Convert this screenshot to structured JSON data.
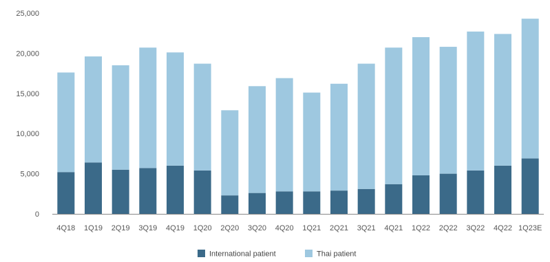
{
  "colors": {
    "international": "#3b6a89",
    "thai": "#9ec8e0",
    "axis": "#888888"
  },
  "chart_data": {
    "type": "bar",
    "stacked": true,
    "title": "",
    "xlabel": "",
    "ylabel": "",
    "ylim": [
      0,
      25000
    ],
    "yticks": [
      0,
      5000,
      10000,
      15000,
      20000,
      25000
    ],
    "ytick_labels": [
      "0",
      "5,000",
      "10,000",
      "15,000",
      "20,000",
      "25,000"
    ],
    "grid": false,
    "legend_position": "bottom-center",
    "categories": [
      "4Q18",
      "1Q19",
      "2Q19",
      "3Q19",
      "4Q19",
      "1Q20",
      "2Q20",
      "3Q20",
      "4Q20",
      "1Q21",
      "2Q21",
      "3Q21",
      "4Q21",
      "1Q22",
      "2Q22",
      "3Q22",
      "4Q22",
      "1Q23E"
    ],
    "series": [
      {
        "name": "International patient",
        "color": "#3b6a89",
        "values": [
          5200,
          6400,
          5500,
          5700,
          6000,
          5400,
          2300,
          2600,
          2800,
          2800,
          2900,
          3100,
          3700,
          4800,
          5000,
          5400,
          6000,
          6900
        ]
      },
      {
        "name": "Thai patient",
        "color": "#9ec8e0",
        "values": [
          12400,
          13200,
          13000,
          15000,
          14100,
          13300,
          10600,
          13300,
          14100,
          12300,
          13300,
          15600,
          17000,
          17200,
          15800,
          17300,
          16400,
          17400
        ]
      }
    ]
  }
}
